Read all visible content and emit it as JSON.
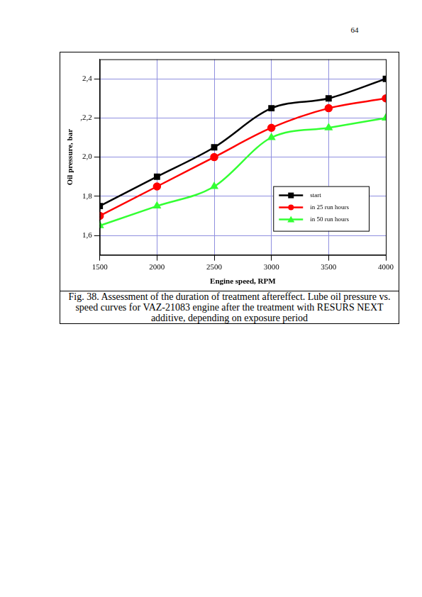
{
  "page_number": 64,
  "caption": "Fig. 38. Assessment of the duration of treatment aftereffect. Lube oil pressure vs. speed curves for VAZ-21083 engine after the treatment with RESURS NEXT additive, depending on exposure period",
  "chart_data": {
    "type": "line",
    "x_label": "Engine speed, RPM",
    "y_label": "Oil pressure, bar",
    "x": [
      1500,
      2000,
      2500,
      3000,
      3500,
      4000
    ],
    "series": [
      {
        "name": "start",
        "color": "#000000",
        "marker": "square",
        "values": [
          1.75,
          1.9,
          2.05,
          2.25,
          2.3,
          2.4
        ]
      },
      {
        "name": "in 25 run hours",
        "color": "#ff0000",
        "marker": "circle",
        "values": [
          1.7,
          1.85,
          2.0,
          2.15,
          2.25,
          2.3
        ]
      },
      {
        "name": "in 50 run hours",
        "color": "#33ff33",
        "marker": "triangle",
        "values": [
          1.65,
          1.75,
          1.85,
          2.1,
          2.15,
          2.2
        ]
      }
    ],
    "xlim": [
      1500,
      4000
    ],
    "xticks": [
      1500,
      2000,
      2500,
      3000,
      3500,
      4000
    ],
    "ylim": [
      1.5,
      2.5
    ],
    "yticks": [
      {
        "value": 1.6,
        "label": "1,6"
      },
      {
        "value": 1.8,
        "label": "1,8"
      },
      {
        "value": 2.0,
        "label": "2,0"
      },
      {
        "value": 2.2,
        "label": ",2,2"
      },
      {
        "value": 2.4,
        "label": "2,4"
      }
    ],
    "grid": true,
    "legend": "lower right"
  }
}
